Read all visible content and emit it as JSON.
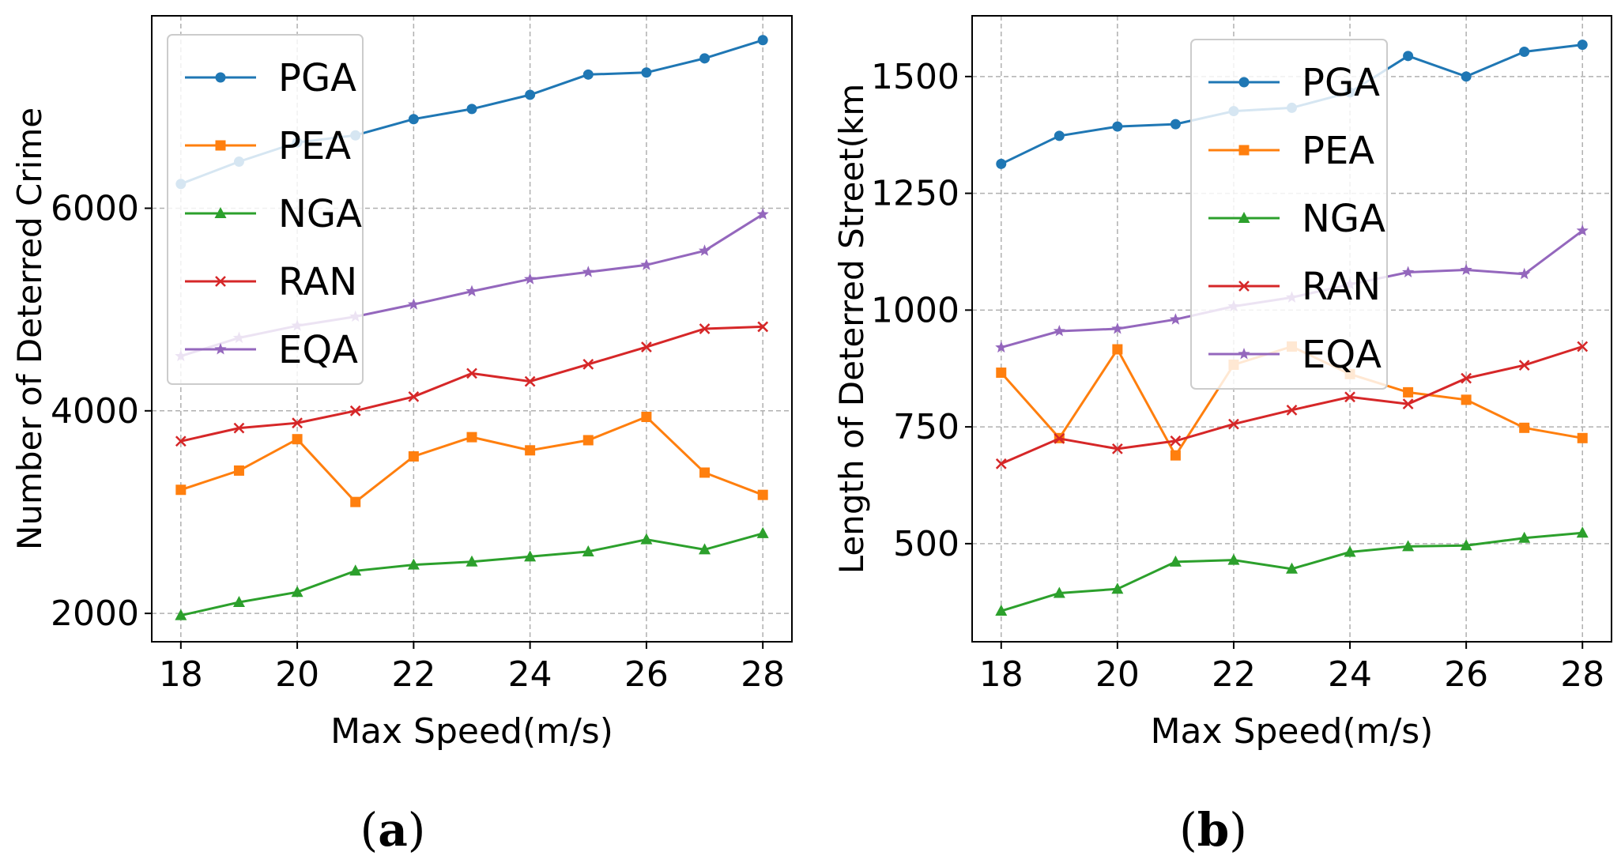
{
  "chart_data": [
    {
      "type": "line",
      "panel": "(a)",
      "xlabel": "Max Speed(m/s)",
      "ylabel": "Number of Deterred Crime",
      "xlim": [
        17.5,
        28.5
      ],
      "ylim": [
        1720,
        7900
      ],
      "xticks": [
        18,
        20,
        22,
        24,
        26,
        28
      ],
      "yticks": [
        2000,
        4000,
        6000
      ],
      "grid": true,
      "legend": "top-left",
      "x": [
        18,
        19,
        20,
        21,
        22,
        23,
        24,
        25,
        26,
        27,
        28
      ],
      "series": [
        {
          "name": "PGA",
          "color": "#1f77b4",
          "marker": "circle",
          "values": [
            6240,
            6460,
            6650,
            6720,
            6880,
            6980,
            7120,
            7320,
            7340,
            7480,
            7660
          ]
        },
        {
          "name": "PEA",
          "color": "#ff7f0e",
          "marker": "square",
          "values": [
            3220,
            3410,
            3720,
            3100,
            3550,
            3740,
            3610,
            3710,
            3940,
            3390,
            3170
          ]
        },
        {
          "name": "NGA",
          "color": "#2ca02c",
          "marker": "triangle",
          "values": [
            1980,
            2110,
            2210,
            2420,
            2480,
            2510,
            2560,
            2610,
            2730,
            2630,
            2790
          ]
        },
        {
          "name": "RAN",
          "color": "#d62728",
          "marker": "x",
          "values": [
            3700,
            3830,
            3880,
            4000,
            4140,
            4370,
            4290,
            4460,
            4630,
            4810,
            4830
          ]
        },
        {
          "name": "EQA",
          "color": "#9467bd",
          "marker": "star",
          "values": [
            4540,
            4720,
            4840,
            4930,
            5050,
            5180,
            5300,
            5370,
            5440,
            5580,
            5940
          ]
        }
      ]
    },
    {
      "type": "line",
      "panel": "(b)",
      "xlabel": "Max Speed(m/s)",
      "ylabel": "Length of Deterred Street(km",
      "xlim": [
        17.5,
        28.5
      ],
      "ylim": [
        290,
        1630
      ],
      "xticks": [
        18,
        20,
        22,
        24,
        26,
        28
      ],
      "yticks": [
        500,
        750,
        1000,
        1250,
        1500
      ],
      "grid": true,
      "legend": "top-center",
      "x": [
        18,
        19,
        20,
        21,
        22,
        23,
        24,
        25,
        26,
        27,
        28
      ],
      "series": [
        {
          "name": "PGA",
          "color": "#1f77b4",
          "marker": "circle",
          "values": [
            1313,
            1373,
            1393,
            1398,
            1426,
            1433,
            1466,
            1544,
            1500,
            1553,
            1568
          ]
        },
        {
          "name": "PEA",
          "color": "#ff7f0e",
          "marker": "square",
          "values": [
            866,
            726,
            916,
            689,
            883,
            922,
            863,
            824,
            808,
            748,
            726
          ]
        },
        {
          "name": "NGA",
          "color": "#2ca02c",
          "marker": "triangle",
          "values": [
            356,
            394,
            403,
            461,
            465,
            446,
            482,
            494,
            496,
            512,
            523
          ]
        },
        {
          "name": "RAN",
          "color": "#d62728",
          "marker": "x",
          "values": [
            671,
            725,
            703,
            720,
            756,
            786,
            814,
            799,
            854,
            882,
            922
          ]
        },
        {
          "name": "EQA",
          "color": "#9467bd",
          "marker": "star",
          "values": [
            920,
            955,
            960,
            980,
            1008,
            1027,
            1055,
            1081,
            1086,
            1077,
            1170
          ]
        }
      ]
    }
  ]
}
